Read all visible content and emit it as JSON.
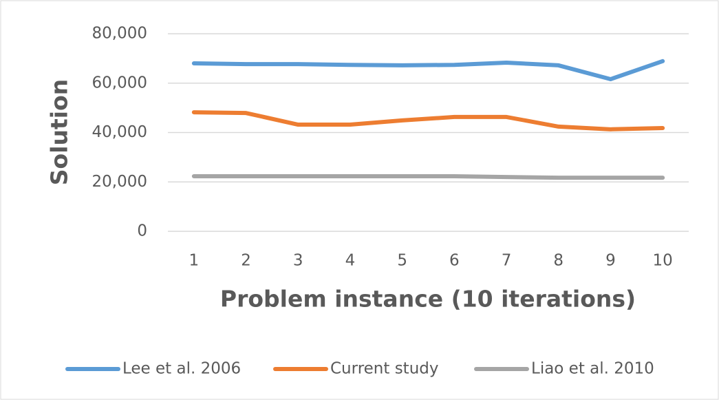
{
  "chart_data": {
    "type": "line",
    "x_label": "Problem instance (10 iterations)",
    "y_label": "Solution",
    "categories": [
      "1",
      "2",
      "3",
      "4",
      "5",
      "6",
      "7",
      "8",
      "9",
      "10"
    ],
    "series": [
      {
        "name": "Lee et al. 2006",
        "color": "#5b9bd5",
        "values": [
          68000,
          67700,
          67700,
          67400,
          67200,
          67400,
          68300,
          67200,
          61600,
          68900
        ]
      },
      {
        "name": "Current study",
        "color": "#ed7d31",
        "values": [
          48200,
          47900,
          43200,
          43200,
          44900,
          46300,
          46300,
          42400,
          41300,
          41800
        ]
      },
      {
        "name": "Liao et al. 2010",
        "color": "#a5a5a5",
        "values": [
          22300,
          22300,
          22300,
          22300,
          22300,
          22300,
          22000,
          21700,
          21700,
          21700
        ]
      }
    ],
    "ylim": [
      0,
      80000
    ],
    "yticks": [
      0,
      {
        "value": 20000,
        "label": "20,000"
      },
      {
        "value": 40000,
        "label": "40,000"
      },
      {
        "value": 60000,
        "label": "60,000"
      },
      {
        "value": 80000,
        "label": "80,000"
      }
    ],
    "grid": true,
    "legend": "bottom"
  }
}
